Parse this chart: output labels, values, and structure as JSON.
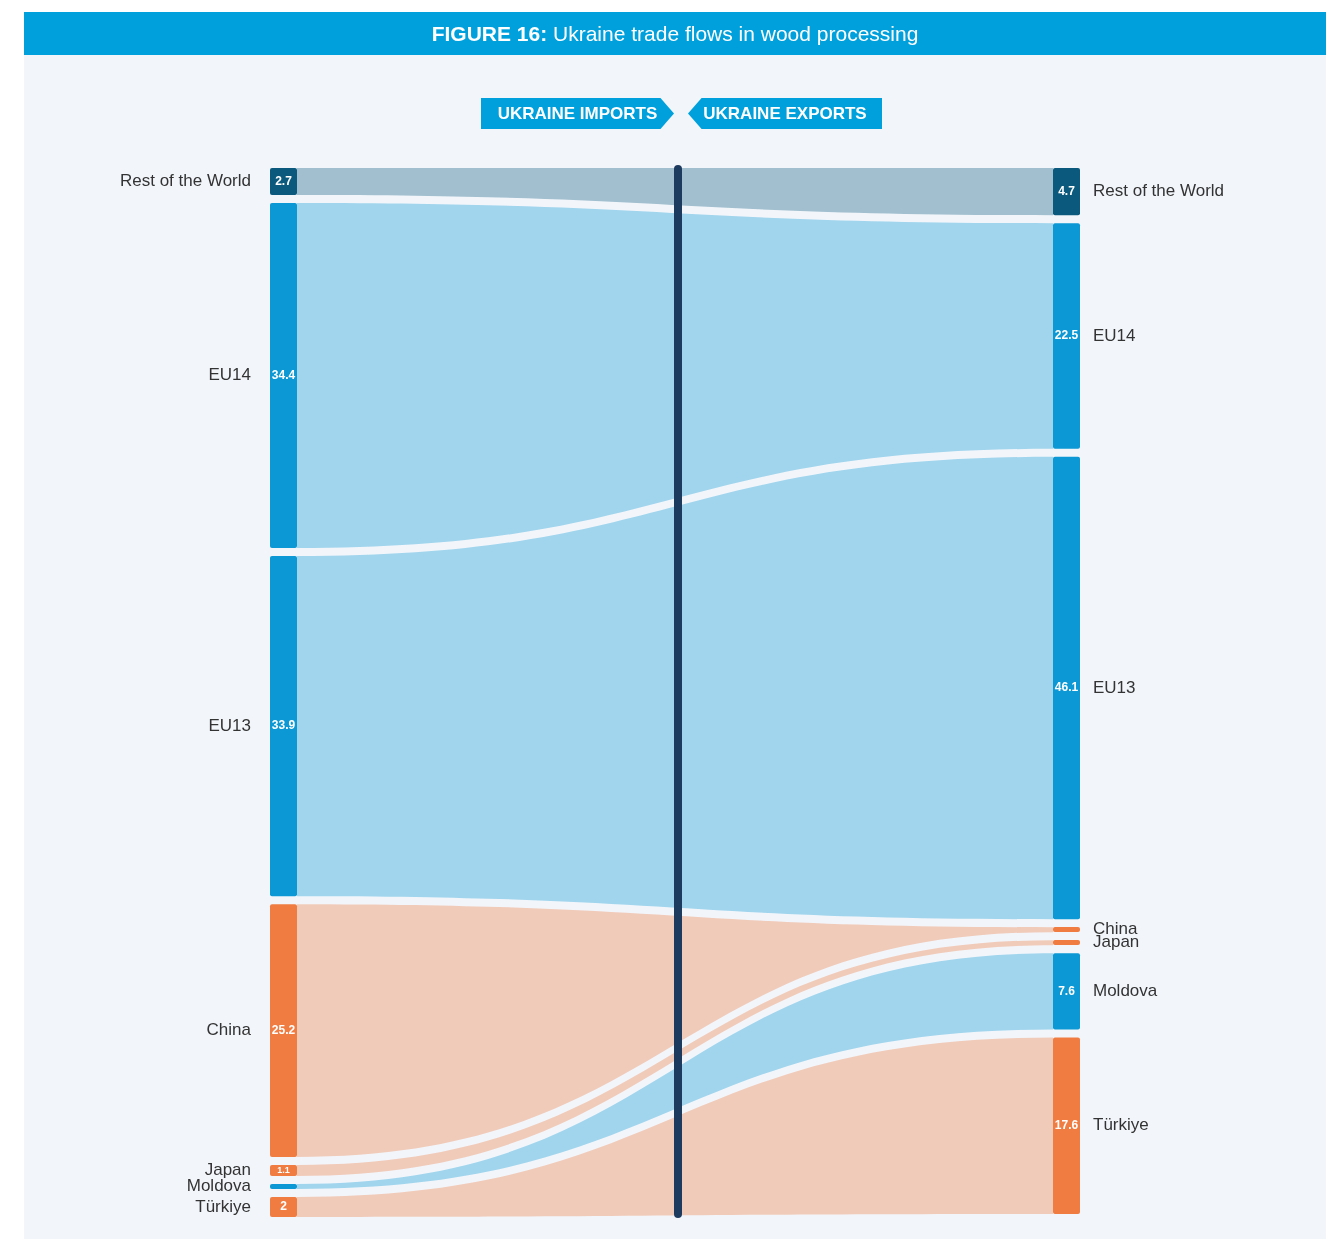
{
  "chart_data": {
    "type": "other",
    "data_labels": true,
    "title": "FIGURE 16: Ukraine trade flows in wood processing",
    "categories": [
      "Rest of the World",
      "EU14",
      "EU13",
      "China",
      "Japan",
      "Moldova",
      "Türkiye"
    ],
    "series": [
      {
        "name": "UKRAINE IMPORTS",
        "colors": [
          "#0b5a7e",
          "#0b98d4",
          "#0b98d4",
          "#f07c42",
          "#f07c42",
          "#0b98d4",
          "#f07c42"
        ],
        "values": [
          2.7,
          34.4,
          33.9,
          25.2,
          1.1,
          null,
          2
        ]
      },
      {
        "name": "UKRAINE EXPORTS",
        "colors": [
          "#0b5a7e",
          "#0b98d4",
          "#0b98d4",
          "#f07c42",
          "#f07c42",
          "#0b98d4",
          "#f07c42"
        ],
        "values": [
          4.7,
          22.5,
          46.1,
          null,
          null,
          7.6,
          17.6
        ]
      }
    ]
  }
}
